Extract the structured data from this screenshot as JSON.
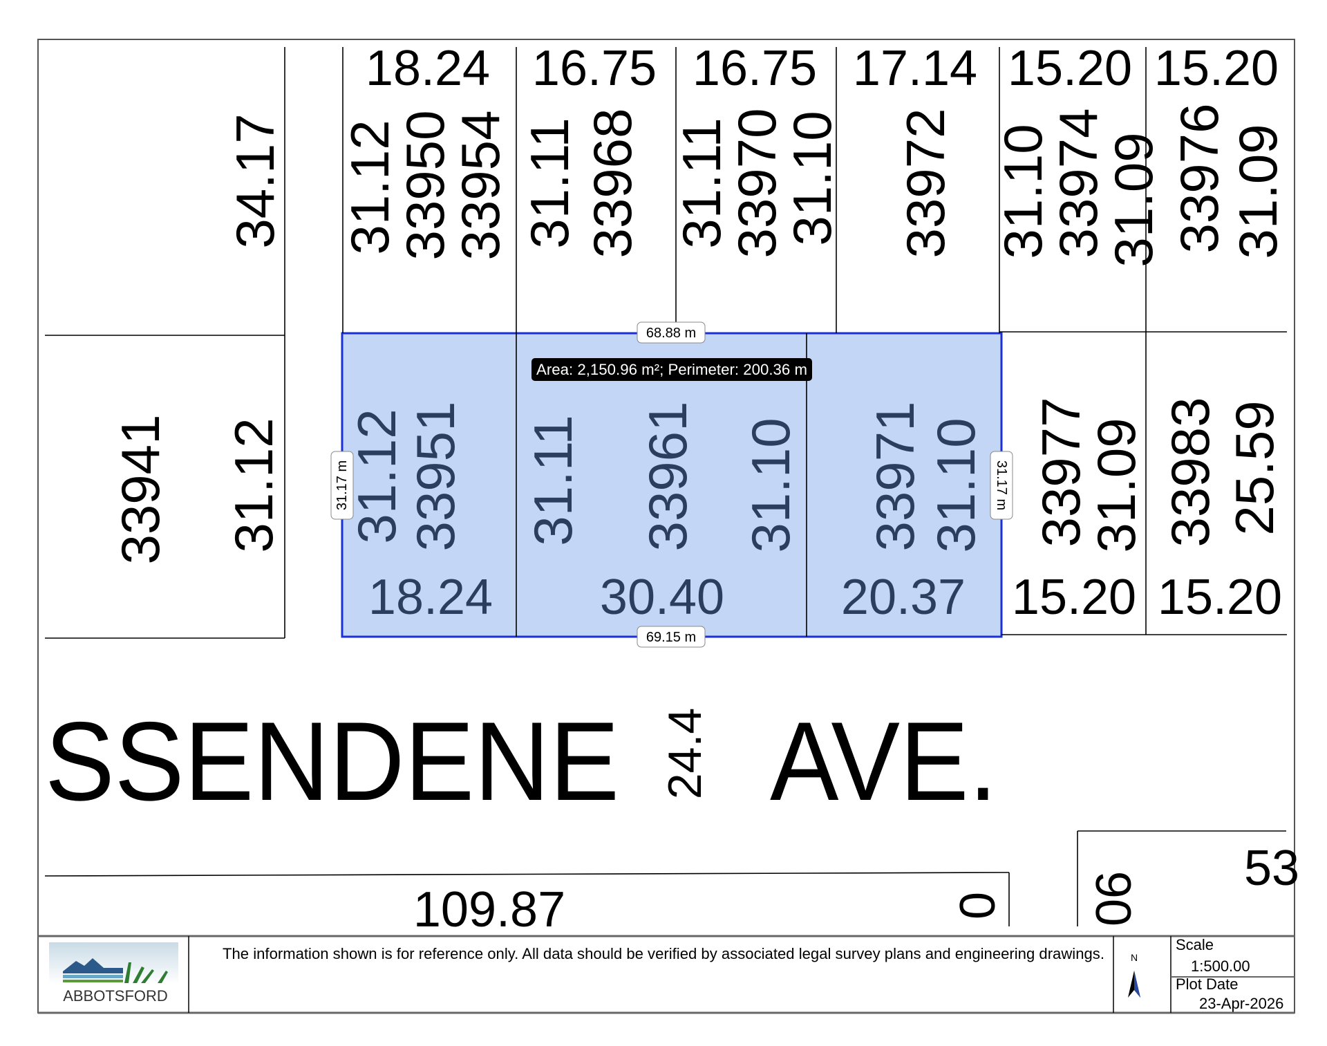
{
  "map": {
    "top_frontages": [
      "18.24",
      "16.75",
      "16.75",
      "17.14",
      "15.20",
      "15.20"
    ],
    "top_parcels": {
      "p1_depth": "34.17",
      "p2_depth": "31.12",
      "p2_id": "33950",
      "p3_id": "33954",
      "p4_depth": "31.11",
      "p4_id": "33968",
      "p5_depth_left": "31.11",
      "p5_id": "33970",
      "p5_depth_right": "31.10",
      "p6_id": "33972",
      "p7_depth_left": "31.10",
      "p7_id": "33974",
      "p7_depth_right": "31.09",
      "p8_id": "33976",
      "p8_depth": "31.09"
    },
    "middle_parcels": {
      "m1_id": "33941",
      "m1_depth": "31.12",
      "m2_depth": "31.12",
      "m2_id": "33951",
      "m3_depth_left": "31.11",
      "m3_id": "33961",
      "m3_depth_right": "31.10",
      "m4_id": "33971",
      "m4_depth": "31.10",
      "m5_id": "33977",
      "m5_depth": "31.09",
      "m6_id": "33983",
      "m6_depth": "25.59"
    },
    "bottom_frontages": [
      "18.24",
      "30.40",
      "20.37",
      "15.20",
      "15.20"
    ],
    "street_name_left": "SSENDENE",
    "street_width": "24.4",
    "street_name_right": "AVE.",
    "lower_labels": {
      "length": "109.87",
      "edge_left": "0",
      "edge_right": "06",
      "corner": "53"
    }
  },
  "measurement": {
    "top_edge": "68.88 m",
    "bottom_edge": "69.15 m",
    "left_edge": "31.17 m",
    "right_edge": "31.17 m",
    "tooltip": "Area: 2,150.96 m²; Perimeter: 200.36 m",
    "selection_fill": "#c3d6f5",
    "selection_stroke": "#1a2fd6"
  },
  "footer": {
    "logo_text": "ABBOTSFORD",
    "disclaimer": "The information shown is for reference only.  All data should be verified by associated legal survey plans and engineering drawings.",
    "north_label": "N",
    "scale_label": "Scale",
    "scale_value": "1:500.00",
    "plot_date_label": "Plot Date",
    "plot_date_value": "23-Apr-2026"
  }
}
